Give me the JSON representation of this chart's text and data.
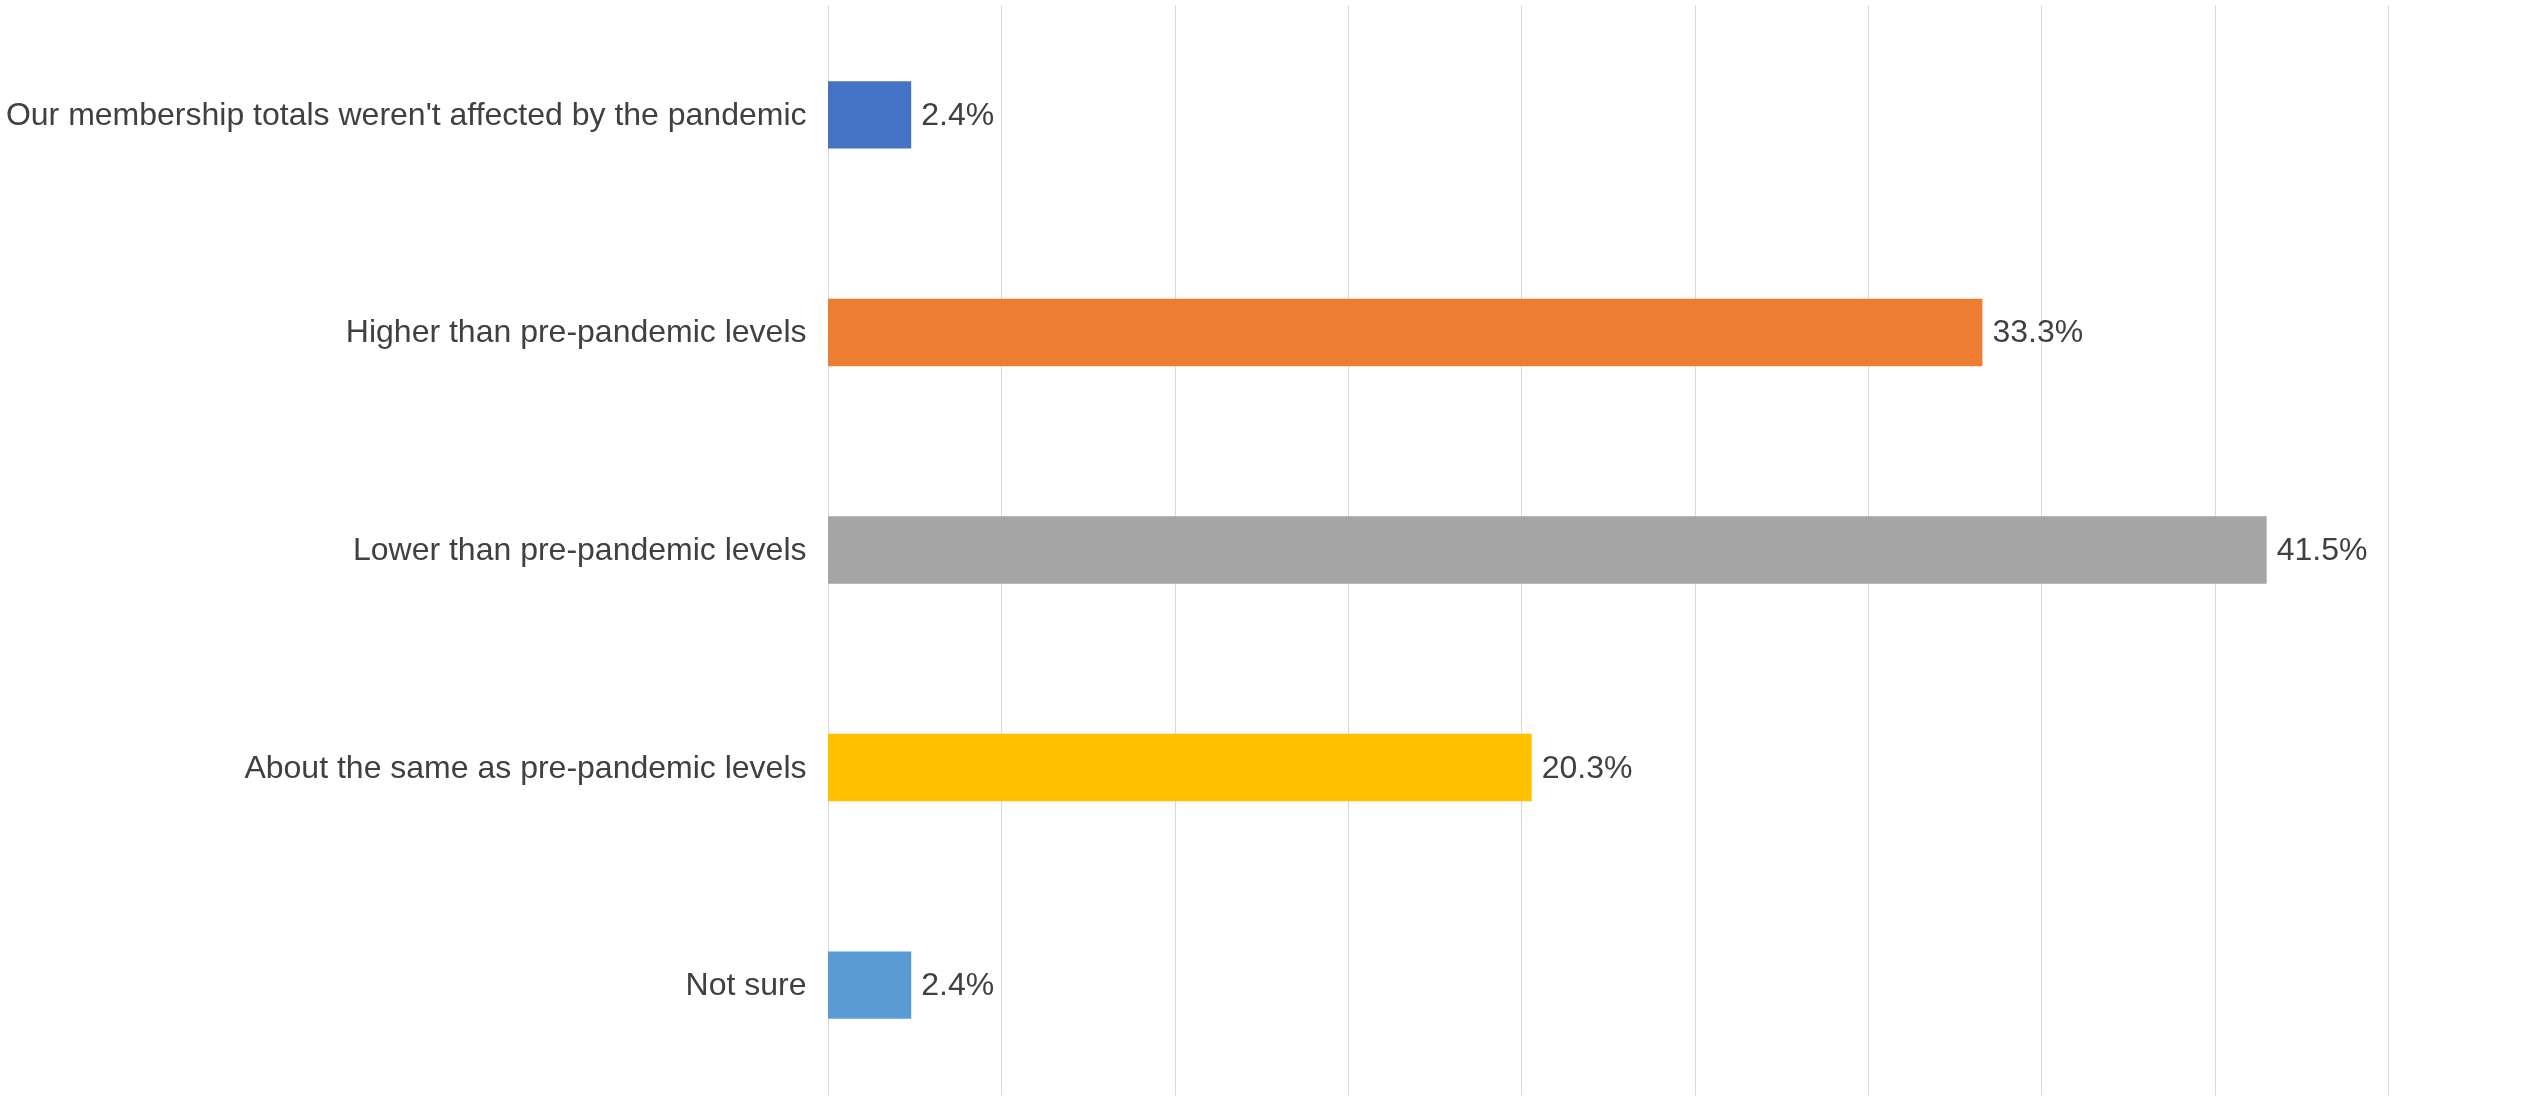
{
  "chart_data": {
    "type": "bar",
    "orientation": "horizontal",
    "categories": [
      "Our membership totals weren't affected by the pandemic",
      "Higher than pre-pandemic levels",
      "Lower than pre-pandemic levels",
      "About the same as pre-pandemic levels",
      "Not sure"
    ],
    "values": [
      2.4,
      33.3,
      41.5,
      20.3,
      2.4
    ],
    "value_labels": [
      "2.4%",
      "33.3%",
      "41.5%",
      "20.3%",
      "2.4%"
    ],
    "colors": [
      "#4472c4",
      "#ed7d31",
      "#a5a5a5",
      "#ffc000",
      "#5b9bd5"
    ],
    "xlim": [
      0,
      45
    ],
    "xticks": [
      {
        "value": 0,
        "label": null
      },
      {
        "value": 5,
        "label": null
      },
      {
        "value": 10,
        "label": null
      },
      {
        "value": 15,
        "label": null
      },
      {
        "value": 20,
        "label": null
      },
      {
        "value": 25,
        "label": null
      },
      {
        "value": 30,
        "label": null
      },
      {
        "value": 35,
        "label": null
      },
      {
        "value": 40,
        "label": null
      },
      {
        "value": 45,
        "label": null
      }
    ],
    "grid": "x",
    "tick_labels": "y"
  }
}
